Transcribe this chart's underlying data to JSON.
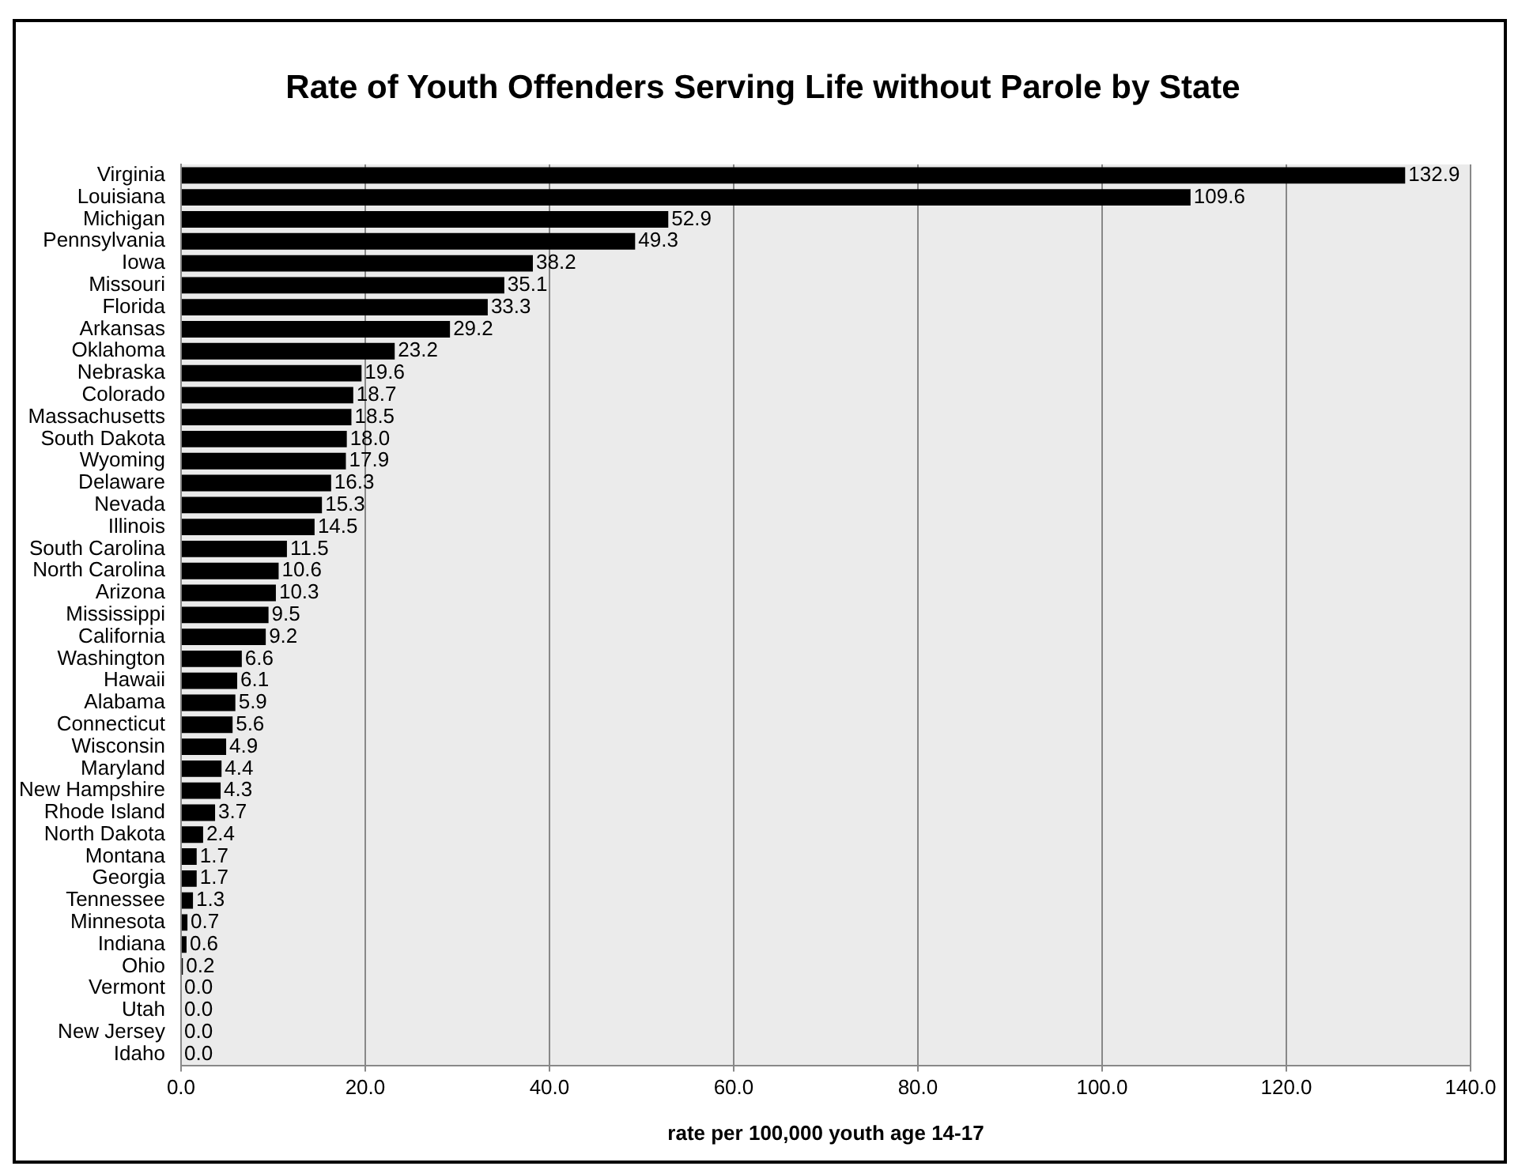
{
  "chart_data": {
    "type": "bar",
    "orientation": "horizontal",
    "title": "Rate of Youth Offenders Serving Life without Parole by State",
    "xlabel": "rate per 100,000 youth age 14-17",
    "categories": [
      "Virginia",
      "Louisiana",
      "Michigan",
      "Pennsylvania",
      "Iowa",
      "Missouri",
      "Florida",
      "Arkansas",
      "Oklahoma",
      "Nebraska",
      "Colorado",
      "Massachusetts",
      "South Dakota",
      "Wyoming",
      "Delaware",
      "Nevada",
      "Illinois",
      "South Carolina",
      "North Carolina",
      "Arizona",
      "Mississippi",
      "California",
      "Washington",
      "Hawaii",
      "Alabama",
      "Connecticut",
      "Wisconsin",
      "Maryland",
      "New Hampshire",
      "Rhode Island",
      "North Dakota",
      "Montana",
      "Georgia",
      "Tennessee",
      "Minnesota",
      "Indiana",
      "Ohio",
      "Vermont",
      "Utah",
      "New Jersey",
      "Idaho"
    ],
    "values": [
      132.9,
      109.6,
      52.9,
      49.3,
      38.2,
      35.1,
      33.3,
      29.2,
      23.2,
      19.6,
      18.7,
      18.5,
      18.0,
      17.9,
      16.3,
      15.3,
      14.5,
      11.5,
      10.6,
      10.3,
      9.5,
      9.2,
      6.6,
      6.1,
      5.9,
      5.6,
      4.9,
      4.4,
      4.3,
      3.7,
      2.4,
      1.7,
      1.7,
      1.3,
      0.7,
      0.6,
      0.2,
      0.0,
      0.0,
      0.0,
      0.0
    ],
    "value_labels": [
      "132.9",
      "109.6",
      "52.9",
      "49.3",
      "38.2",
      "35.1",
      "33.3",
      "29.2",
      "23.2",
      "19.6",
      "18.7",
      "18.5",
      "18.0",
      "17.9",
      "16.3",
      "15.3",
      "14.5",
      "11.5",
      "10.6",
      "10.3",
      "9.5",
      "9.2",
      "6.6",
      "6.1",
      "5.9",
      "5.6",
      "4.9",
      "4.4",
      "4.3",
      "3.7",
      "2.4",
      "1.7",
      "1.7",
      "1.3",
      "0.7",
      "0.6",
      "0.2",
      "0.0",
      "0.0",
      "0.0",
      "0.0"
    ],
    "color": "#000000",
    "xlim": [
      0,
      140
    ],
    "xticks": [
      {
        "value": 0,
        "label": "0.0"
      },
      {
        "value": 20,
        "label": "20.0"
      },
      {
        "value": 40,
        "label": "40.0"
      },
      {
        "value": 60,
        "label": "60.0"
      },
      {
        "value": 80,
        "label": "80.0"
      },
      {
        "value": 100,
        "label": "100.0"
      },
      {
        "value": 120,
        "label": "120.0"
      },
      {
        "value": 140,
        "label": "140.0"
      }
    ],
    "grid": "x",
    "legend": false
  }
}
